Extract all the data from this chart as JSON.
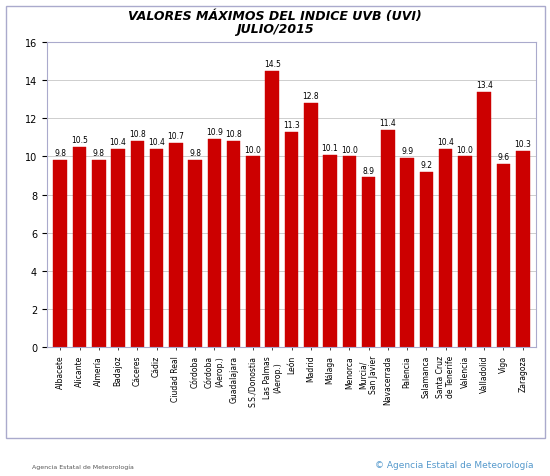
{
  "title_line1": "VALORES MÁXIMOS DEL INDICE UVB (UVI)",
  "title_line2": "JULIO/2015",
  "categories": [
    "Albacete",
    "Alicante",
    "Almería",
    "Badajoz",
    "Cáceres",
    "Cádiz",
    "Ciudad Real",
    "Córdoba",
    "Córdoba\n(Aerop.)",
    "Guadalajara",
    "S.S./Donostia",
    "Las Palmas\n(Aerop.)",
    "León",
    "Madrid",
    "Málaga",
    "Menorca",
    "Murcia/\nSan Javier",
    "Navacerrada",
    "Palencia",
    "Salamanca",
    "Santa Cruz\nde Tenerife",
    "Valencia",
    "Valladolid",
    "Vigo",
    "Zaragoza"
  ],
  "values": [
    9.8,
    10.5,
    9.8,
    10.4,
    10.8,
    10.4,
    10.7,
    9.8,
    10.9,
    10.8,
    10.0,
    14.5,
    11.3,
    12.8,
    10.1,
    10.0,
    8.9,
    11.4,
    9.9,
    9.2,
    10.4,
    10.0,
    13.4,
    9.6,
    10.3
  ],
  "bar_color": "#cc0000",
  "bar_edge_color": "#cc0000",
  "ylim": [
    0,
    16
  ],
  "yticks": [
    0.0,
    2.0,
    4.0,
    6.0,
    8.0,
    10.0,
    12.0,
    14.0,
    16.0
  ],
  "grid_color": "#bbbbbb",
  "bg_color": "#ffffff",
  "title_fontsize": 9,
  "value_fontsize": 5.5,
  "xlabel_fontsize": 5.5,
  "ylabel_fontsize": 7,
  "outer_border_color": "#aaaacc",
  "copyright_text": "© Agencia Estatal de Meteorología",
  "aemet_subtext": "Agencia Estatal de Meteorología"
}
